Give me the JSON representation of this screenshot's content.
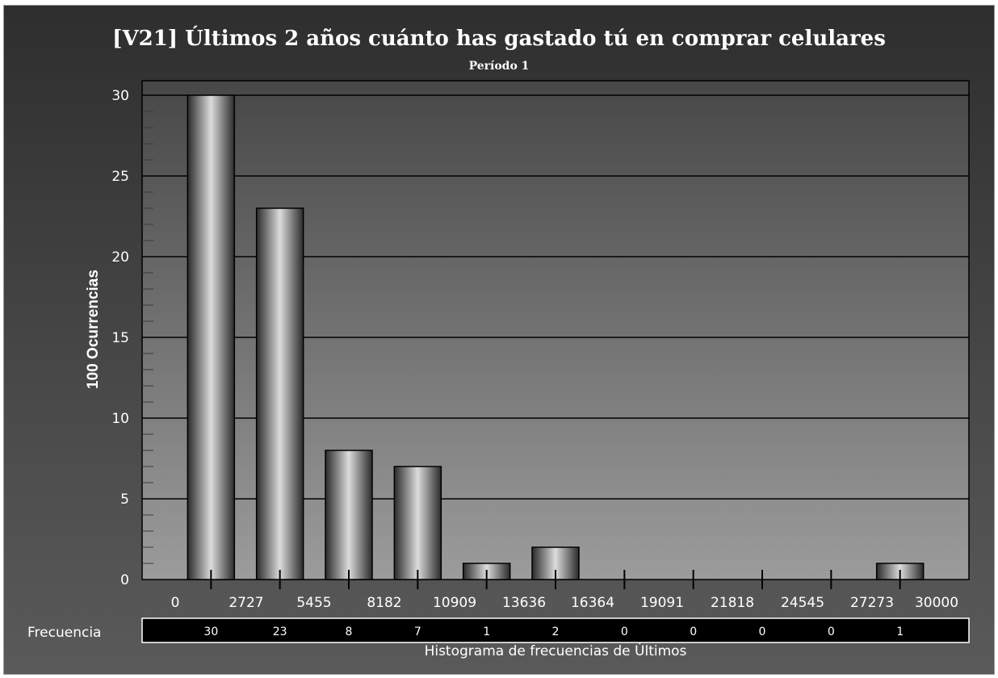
{
  "chart_data": {
    "type": "bar",
    "title": "[V21] Últimos 2 años cuánto has gastado tú en comprar celulares",
    "subtitle": "Período 1",
    "ylabel": "100 Ocurrencias",
    "xlabel": "Histograma de frecuencias de Últimos",
    "x_ticks": [
      "0",
      "2727",
      "5455",
      "8182",
      "10909",
      "13636",
      "16364",
      "19091",
      "21818",
      "24545",
      "27273",
      "30000"
    ],
    "y_ticks": [
      "0",
      "5",
      "10",
      "15",
      "20",
      "25",
      "30"
    ],
    "ylim": [
      0,
      30
    ],
    "values": [
      30,
      23,
      8,
      7,
      1,
      2,
      0,
      0,
      0,
      0,
      1
    ],
    "freq_row_label": "Frecuencia",
    "freq_row": [
      "30",
      "23",
      "8",
      "7",
      "1",
      "2",
      "0",
      "0",
      "0",
      "0",
      "1"
    ],
    "grid": true
  },
  "colors": {
    "bar_dark": "#2a2a2a",
    "bar_light": "#d8d8d8",
    "plot_top": "#4a4a4a",
    "plot_bottom": "#9a9a9a",
    "grid": "#000000"
  }
}
